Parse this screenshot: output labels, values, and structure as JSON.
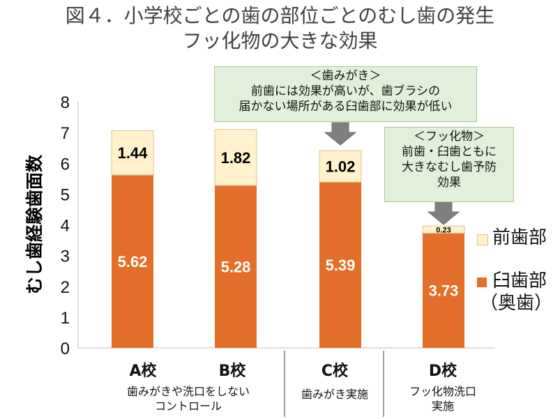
{
  "title": {
    "line1": "図４．小学校ごとの歯の部位ごとのむし歯の発生",
    "line2": "フッ化物の大きな効果"
  },
  "callouts": [
    {
      "line1": "＜歯みがき＞",
      "line2": "前歯には効果が高いが、歯ブラシの",
      "line3": "届かない場所がある臼歯部に効果が低い"
    },
    {
      "line1": "＜フッ化物＞",
      "line2": "前歯・臼歯ともに",
      "line3": "大きなむし歯予防",
      "line4": "効果"
    }
  ],
  "legend": {
    "front": "前歯部",
    "molar": "臼歯部",
    "molar_sub": "（奥歯）"
  },
  "categories": [
    {
      "name": "A校",
      "sub1": "歯みがきや洗口をしない",
      "sub2": "コントロール"
    },
    {
      "name": "B校",
      "sub1": "",
      "sub2": ""
    },
    {
      "name": "C校",
      "sub1": "歯みがき実施",
      "sub2": ""
    },
    {
      "name": "D校",
      "sub1": "フッ化物洗口",
      "sub2": "実施"
    }
  ],
  "chart_data": {
    "type": "bar",
    "stacked": true,
    "categories": [
      "A校",
      "B校",
      "C校",
      "D校"
    ],
    "series": [
      {
        "name": "臼歯部（奥歯）",
        "values": [
          5.62,
          5.28,
          5.39,
          3.73
        ],
        "color": "#e46f2a",
        "label_color": "#ffffff"
      },
      {
        "name": "前歯部",
        "values": [
          1.44,
          1.82,
          1.02,
          0.23
        ],
        "color": "#fff2cc",
        "label_color": "#000000"
      }
    ],
    "ylabel": "むし歯経験歯面数",
    "ylim": [
      0,
      8
    ],
    "yticks": [
      0,
      1,
      2,
      3,
      4,
      5,
      6,
      7,
      8
    ],
    "grid": false,
    "legend": "right"
  }
}
